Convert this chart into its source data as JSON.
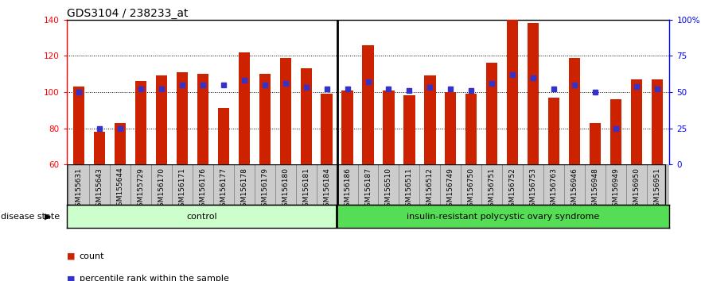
{
  "title": "GDS3104 / 238233_at",
  "samples": [
    "GSM155631",
    "GSM155643",
    "GSM155644",
    "GSM155729",
    "GSM156170",
    "GSM156171",
    "GSM156176",
    "GSM156177",
    "GSM156178",
    "GSM156179",
    "GSM156180",
    "GSM156181",
    "GSM156184",
    "GSM156186",
    "GSM156187",
    "GSM156510",
    "GSM156511",
    "GSM156512",
    "GSM156749",
    "GSM156750",
    "GSM156751",
    "GSM156752",
    "GSM156753",
    "GSM156763",
    "GSM156946",
    "GSM156948",
    "GSM156949",
    "GSM156950",
    "GSM156951"
  ],
  "counts": [
    103,
    78,
    83,
    106,
    109,
    111,
    110,
    91,
    122,
    110,
    119,
    113,
    99,
    101,
    126,
    101,
    98,
    109,
    100,
    99,
    116,
    140,
    138,
    97,
    119,
    83,
    96,
    107,
    107
  ],
  "percentile_ranks": [
    50,
    25,
    25,
    52,
    52,
    55,
    55,
    55,
    58,
    55,
    56,
    53,
    52,
    52,
    57,
    52,
    51,
    53,
    52,
    51,
    56,
    62,
    60,
    52,
    55,
    50,
    25,
    54,
    52
  ],
  "control_count": 13,
  "ylim_left": [
    60,
    140
  ],
  "ylim_right": [
    0,
    100
  ],
  "yticks_left": [
    60,
    80,
    100,
    120,
    140
  ],
  "ytick_labels_left": [
    "60",
    "80",
    "100",
    "120",
    "140"
  ],
  "yticks_right": [
    0,
    25,
    50,
    75,
    100
  ],
  "ytick_labels_right": [
    "0",
    "25",
    "50",
    "75",
    "100%"
  ],
  "bar_color": "#cc2200",
  "dot_color": "#3333cc",
  "bar_width": 0.55,
  "control_label": "control",
  "disease_label": "insulin-resistant polycystic ovary syndrome",
  "disease_state_label": "disease state",
  "legend_count_label": "count",
  "legend_pct_label": "percentile rank within the sample",
  "control_bg": "#ccffcc",
  "disease_bg": "#55dd55",
  "x_tick_bg": "#cccccc",
  "title_fontsize": 10,
  "tick_fontsize": 7.5,
  "sample_fontsize": 6.5
}
